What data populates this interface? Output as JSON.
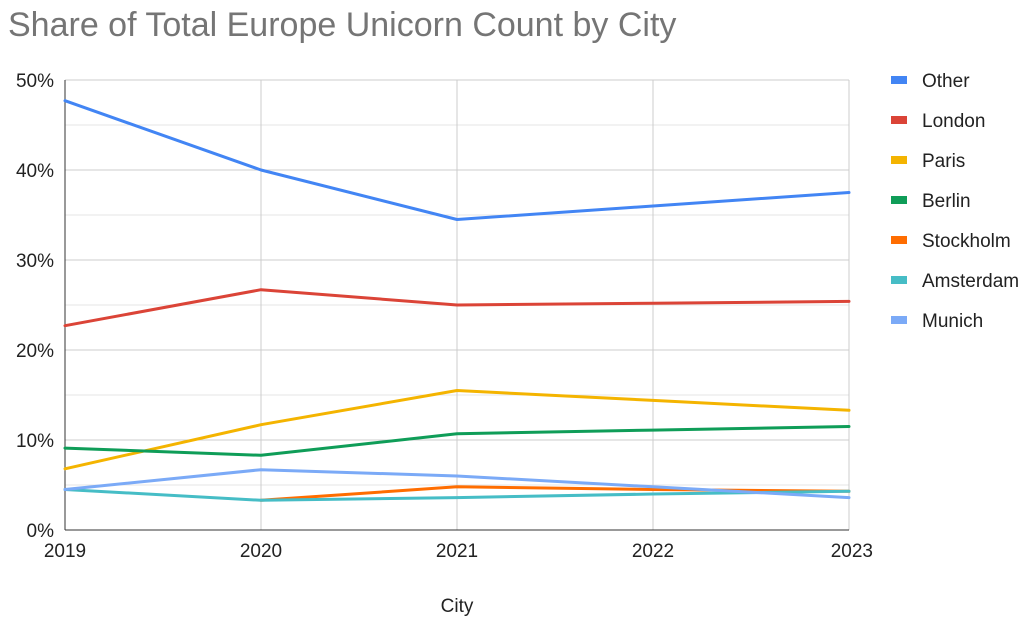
{
  "chart_data": {
    "type": "line",
    "title": "Share of Total Europe Unicorn Count by City",
    "xlabel": "City",
    "ylabel": "",
    "x": [
      "2019",
      "2020",
      "2021",
      "2022",
      "2023"
    ],
    "ylim": [
      0,
      50
    ],
    "yticks": [
      "0%",
      "10%",
      "20%",
      "30%",
      "40%",
      "50%"
    ],
    "grid": true,
    "legend_position": "right",
    "series": [
      {
        "name": "Other",
        "color": "#4285F4",
        "values": [
          47.7,
          40.0,
          34.5,
          36.0,
          37.5
        ]
      },
      {
        "name": "London",
        "color": "#DB4437",
        "values": [
          22.7,
          26.7,
          25.0,
          25.2,
          25.4
        ]
      },
      {
        "name": "Paris",
        "color": "#F4B400",
        "values": [
          6.8,
          11.7,
          15.5,
          14.4,
          13.3
        ]
      },
      {
        "name": "Berlin",
        "color": "#0F9D58",
        "values": [
          9.1,
          8.3,
          10.7,
          11.1,
          11.5
        ]
      },
      {
        "name": "Stockholm",
        "color": "#FF6D00",
        "values": [
          null,
          3.3,
          4.8,
          4.5,
          4.3
        ]
      },
      {
        "name": "Amsterdam",
        "color": "#46BDC6",
        "values": [
          4.5,
          3.3,
          3.6,
          4.0,
          4.3
        ]
      },
      {
        "name": "Munich",
        "color": "#7BAAF7",
        "values": [
          4.5,
          6.7,
          6.0,
          4.8,
          3.6
        ]
      }
    ]
  }
}
